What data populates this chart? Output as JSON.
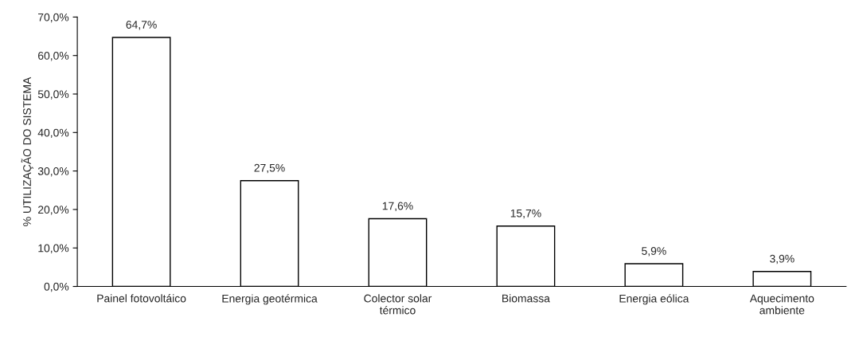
{
  "chart_data": {
    "type": "bar",
    "ylabel": "% UTILIZAÇÃO DO SISTEMA",
    "categories": [
      "Painel fotovoltáico",
      "Energia geotérmica",
      "Colector solar\ntérmico",
      "Biomassa",
      "Energia eólica",
      "Aquecimento\nambiente"
    ],
    "values": [
      64.7,
      27.5,
      17.6,
      15.7,
      5.9,
      3.9
    ],
    "value_labels": [
      "64,7%",
      "27,5%",
      "17,6%",
      "15,7%",
      "5,9%",
      "3,9%"
    ],
    "color": "#ffffff",
    "ylim": [
      0,
      70
    ],
    "yticks": [
      {
        "value": 0,
        "label": "0,0%"
      },
      {
        "value": 10,
        "label": "10,0%"
      },
      {
        "value": 20,
        "label": "20,0%"
      },
      {
        "value": 30,
        "label": "30,0%"
      },
      {
        "value": 40,
        "label": "40,0%"
      },
      {
        "value": 50,
        "label": "50,0%"
      },
      {
        "value": 60,
        "label": "60,0%"
      },
      {
        "value": 70,
        "label": "70,0%"
      }
    ],
    "grid": false,
    "legend": false
  }
}
